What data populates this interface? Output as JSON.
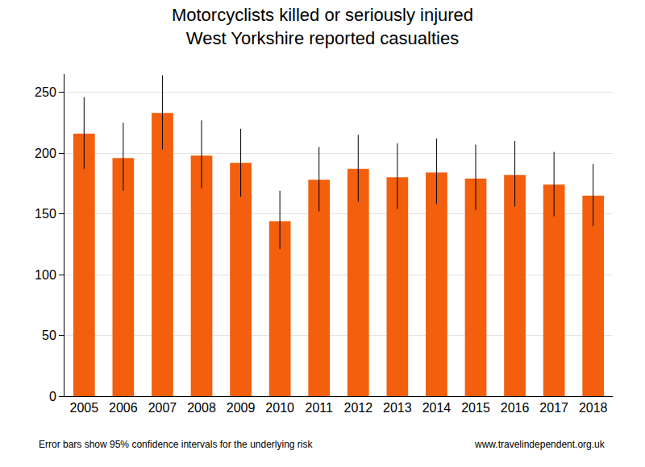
{
  "chart_data": {
    "type": "bar",
    "title": "Motorcyclists killed or seriously injured",
    "subtitle": "West Yorkshire reported casualties",
    "categories": [
      "2005",
      "2006",
      "2007",
      "2008",
      "2009",
      "2010",
      "2011",
      "2012",
      "2013",
      "2014",
      "2015",
      "2016",
      "2017",
      "2018"
    ],
    "values": [
      216,
      196,
      233,
      198,
      192,
      144,
      178,
      187,
      180,
      184,
      179,
      182,
      174,
      165
    ],
    "error_lower": [
      187,
      169,
      203,
      171,
      164,
      121,
      152,
      160,
      154,
      158,
      153,
      156,
      148,
      140
    ],
    "error_upper": [
      246,
      225,
      264,
      227,
      220,
      169,
      205,
      215,
      208,
      212,
      207,
      210,
      201,
      191
    ],
    "color": "#f35f0c",
    "ylim": [
      0,
      265
    ],
    "yticks": [
      0,
      50,
      100,
      150,
      200,
      250
    ],
    "grid": true,
    "note": "Error bars show 95% confidence intervals for the underlying risk",
    "source": "www.travelindependent.org.uk"
  }
}
